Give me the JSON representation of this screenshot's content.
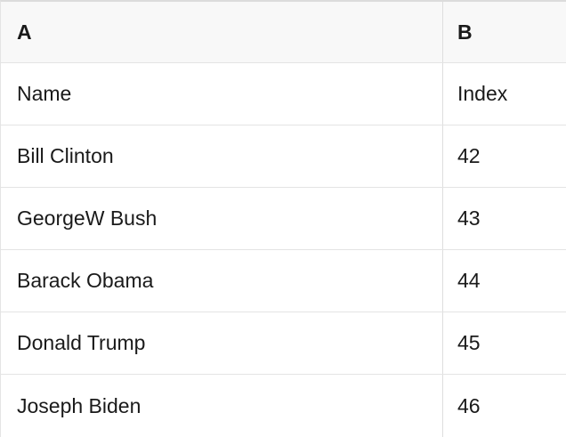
{
  "table": {
    "column_headers": [
      "A",
      "B"
    ],
    "rows": [
      {
        "name": "Name",
        "index": "Index"
      },
      {
        "name": "Bill Clinton",
        "index": "42"
      },
      {
        "name": "GeorgeW Bush",
        "index": "43"
      },
      {
        "name": "Barack Obama",
        "index": "44"
      },
      {
        "name": "Donald Trump",
        "index": "45"
      },
      {
        "name": "Joseph Biden",
        "index": "46"
      }
    ]
  },
  "colors": {
    "header_bg": "#f8f8f8",
    "border": "#e4e4e4",
    "text": "#1a1a1a"
  }
}
